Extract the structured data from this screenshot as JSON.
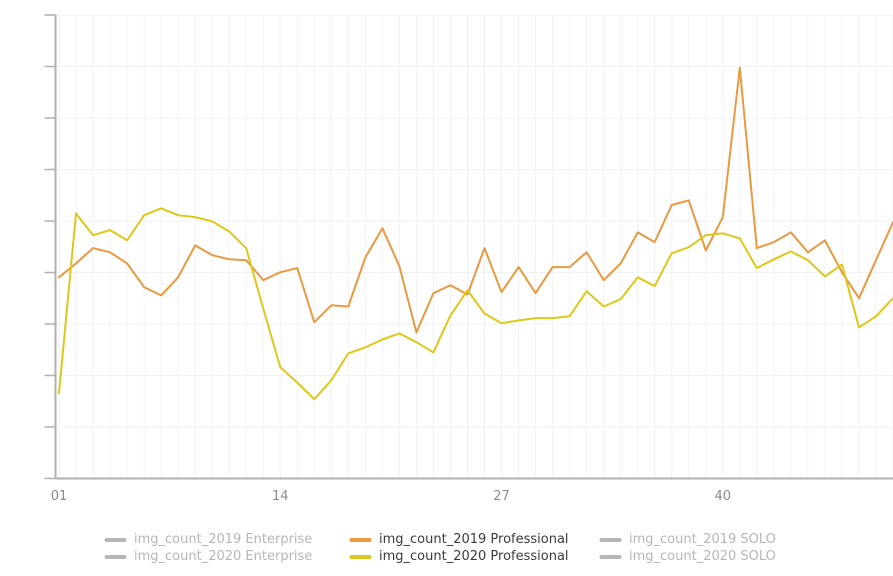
{
  "chart_data": {
    "type": "line",
    "title": "",
    "xlabel": "",
    "ylabel": "",
    "x_axis": {
      "kind": "week-number",
      "x_range": [
        1,
        50
      ],
      "tick_labels": [
        {
          "label": "01",
          "week": 1
        },
        {
          "label": "14",
          "week": 14
        },
        {
          "label": "27",
          "week": 27
        },
        {
          "label": "40",
          "week": 40
        }
      ]
    },
    "y_axis": {
      "labels_visible": false,
      "tick_count": 10,
      "value_range": [
        0,
        100
      ]
    },
    "grid": {
      "vertical": true,
      "horizontal": true
    },
    "series": [
      {
        "name": "img_count_2019 Professional",
        "color": "#e9993f",
        "values": [
          43.4,
          46.4,
          49.7,
          48.8,
          46.4,
          41.3,
          39.5,
          43.4,
          50.3,
          48.2,
          47.3,
          47.1,
          42.8,
          44.5,
          45.4,
          33.7,
          37.4,
          37.1,
          47.7,
          54.0,
          45.8,
          31.5,
          40.0,
          41.7,
          39.7,
          49.7,
          40.2,
          45.6,
          40.0,
          45.6,
          45.6,
          48.8,
          42.8,
          46.4,
          53.1,
          51.0,
          59.0,
          60.0,
          49.2,
          56.4,
          88.6,
          49.7,
          51.0,
          53.1,
          48.8,
          51.4,
          44.5,
          38.9,
          47.1,
          55.3
        ]
      },
      {
        "name": "img_count_2020 Professional",
        "color": "#ddc819",
        "values": [
          18.4,
          57.2,
          52.5,
          53.6,
          51.4,
          56.8,
          58.3,
          56.8,
          56.4,
          55.5,
          53.3,
          49.7,
          36.7,
          24.0,
          20.7,
          17.1,
          21.2,
          27.0,
          28.3,
          30.0,
          31.3,
          29.4,
          27.2,
          35.2,
          40.6,
          35.6,
          33.5,
          34.1,
          34.6,
          34.6,
          35.0,
          40.4,
          37.1,
          38.7,
          43.4,
          41.5,
          48.6,
          49.9,
          52.5,
          52.9,
          51.8,
          45.4,
          47.3,
          49.0,
          47.1,
          43.6,
          46.2,
          32.6,
          35.0,
          38.9
        ]
      }
    ],
    "legend": {
      "position": "bottom",
      "active_text_color": "#3b3b3b",
      "inactive_color": "#b6b6b6",
      "items": [
        {
          "label": "img_count_2019 Enterprise",
          "active": false,
          "color": null
        },
        {
          "label": "img_count_2019 Professional",
          "active": true,
          "color": "#e9993f"
        },
        {
          "label": "img_count_2019 SOLO",
          "active": false,
          "color": null
        },
        {
          "label": "img_count_2020 Enterprise",
          "active": false,
          "color": null
        },
        {
          "label": "img_count_2020 Professional",
          "active": true,
          "color": "#ddc819"
        },
        {
          "label": "img_count_2020 SOLO",
          "active": false,
          "color": null
        }
      ]
    },
    "style": {
      "axis_color": "#b0b0b0",
      "grid_color": "#f2f2f2",
      "axis_label_color": "#8c8c8c",
      "line_width": 2
    }
  }
}
